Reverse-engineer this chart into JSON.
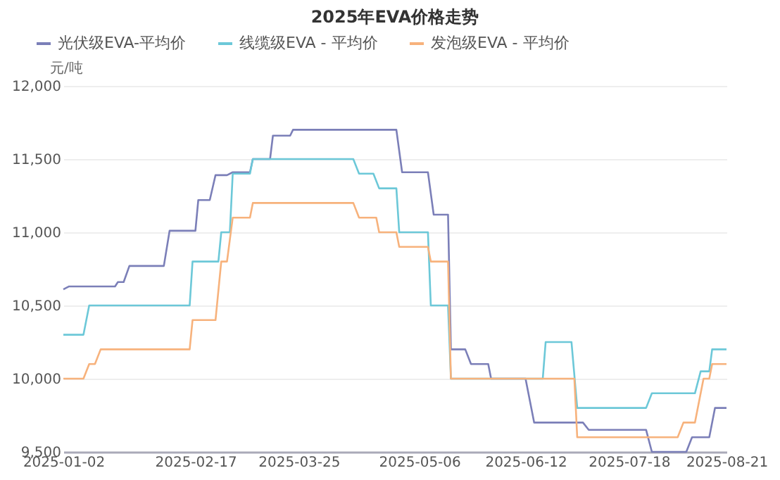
{
  "chart_data": {
    "type": "line",
    "title": "2025年EVA价格走势",
    "ylabel": "元/吨",
    "series": [
      {
        "name": "光伏级EVA-平均价",
        "color": "#7b7fb8",
        "x": [
          "2025-01-02",
          "2025-01-04",
          "2025-01-20",
          "2025-01-21",
          "2025-01-23",
          "2025-01-25",
          "2025-02-06",
          "2025-02-08",
          "2025-02-17",
          "2025-02-18",
          "2025-02-22",
          "2025-02-24",
          "2025-02-28",
          "2025-03-02",
          "2025-03-08",
          "2025-03-09",
          "2025-03-15",
          "2025-03-16",
          "2025-03-22",
          "2025-03-23",
          "2025-04-28",
          "2025-04-30",
          "2025-05-09",
          "2025-05-11",
          "2025-05-16",
          "2025-05-17",
          "2025-05-22",
          "2025-05-24",
          "2025-05-30",
          "2025-05-31",
          "2025-06-12",
          "2025-06-15",
          "2025-07-02",
          "2025-07-04",
          "2025-07-24",
          "2025-07-26",
          "2025-08-07",
          "2025-08-09",
          "2025-08-15",
          "2025-08-17",
          "2025-08-21"
        ],
        "values": [
          10610,
          10630,
          10630,
          10660,
          10660,
          10770,
          10770,
          11010,
          11010,
          11220,
          11220,
          11390,
          11390,
          11410,
          11410,
          11500,
          11500,
          11660,
          11660,
          11700,
          11700,
          11410,
          11410,
          11120,
          11120,
          10200,
          10200,
          10100,
          10100,
          10000,
          10000,
          9700,
          9700,
          9650,
          9650,
          9500,
          9500,
          9600,
          9600,
          9800,
          9800
        ]
      },
      {
        "name": "线缆级EVA - 平均价",
        "color": "#6cc8d8",
        "x": [
          "2025-01-02",
          "2025-01-09",
          "2025-01-11",
          "2025-02-15",
          "2025-02-16",
          "2025-02-25",
          "2025-02-26",
          "2025-03-01",
          "2025-03-02",
          "2025-03-08",
          "2025-03-09",
          "2025-04-13",
          "2025-04-15",
          "2025-04-20",
          "2025-04-22",
          "2025-04-28",
          "2025-04-29",
          "2025-05-09",
          "2025-05-10",
          "2025-05-16",
          "2025-05-17",
          "2025-06-18",
          "2025-06-19",
          "2025-06-28",
          "2025-06-30",
          "2025-07-24",
          "2025-07-26",
          "2025-08-10",
          "2025-08-12",
          "2025-08-15",
          "2025-08-16",
          "2025-08-21"
        ],
        "values": [
          10300,
          10300,
          10500,
          10500,
          10800,
          10800,
          11000,
          11000,
          11400,
          11400,
          11500,
          11500,
          11400,
          11400,
          11300,
          11300,
          11000,
          11000,
          10500,
          10500,
          10000,
          10000,
          10250,
          10250,
          9800,
          9800,
          9900,
          9900,
          10050,
          10050,
          10200,
          10200
        ]
      },
      {
        "name": "发泡级EVA - 平均价",
        "color": "#f7b27c",
        "x": [
          "2025-01-02",
          "2025-01-09",
          "2025-01-11",
          "2025-01-13",
          "2025-01-15",
          "2025-02-15",
          "2025-02-16",
          "2025-02-24",
          "2025-02-26",
          "2025-02-28",
          "2025-03-02",
          "2025-03-08",
          "2025-03-09",
          "2025-04-13",
          "2025-04-15",
          "2025-04-21",
          "2025-04-22",
          "2025-04-28",
          "2025-04-29",
          "2025-05-09",
          "2025-05-10",
          "2025-05-16",
          "2025-05-17",
          "2025-06-29",
          "2025-06-30",
          "2025-08-04",
          "2025-08-06",
          "2025-08-10",
          "2025-08-12",
          "2025-08-13",
          "2025-08-15",
          "2025-08-16",
          "2025-08-21"
        ],
        "values": [
          10000,
          10000,
          10100,
          10100,
          10200,
          10200,
          10400,
          10400,
          10800,
          10800,
          11100,
          11100,
          11200,
          11200,
          11100,
          11100,
          11000,
          11000,
          10900,
          10900,
          10800,
          10800,
          10000,
          10000,
          9600,
          9600,
          9700,
          9700,
          9900,
          10000,
          10000,
          10100,
          10100
        ]
      }
    ],
    "xlim": [
      "2025-01-02",
      "2025-08-21"
    ],
    "xticks": [
      "2025-01-02",
      "2025-02-17",
      "2025-03-25",
      "2025-05-06",
      "2025-06-12",
      "2025-07-18",
      "2025-08-21"
    ],
    "ylim": [
      9500,
      12000
    ],
    "yticks": [
      {
        "value": 9500,
        "label": "9,500"
      },
      {
        "value": 10000,
        "label": "10,000"
      },
      {
        "value": 10500,
        "label": "10,500"
      },
      {
        "value": 11000,
        "label": "11,000"
      },
      {
        "value": 11500,
        "label": "11,500"
      },
      {
        "value": 12000,
        "label": "12,000"
      }
    ],
    "grid": "y",
    "legend": "top left",
    "marker": "none",
    "line_style": "solid"
  }
}
